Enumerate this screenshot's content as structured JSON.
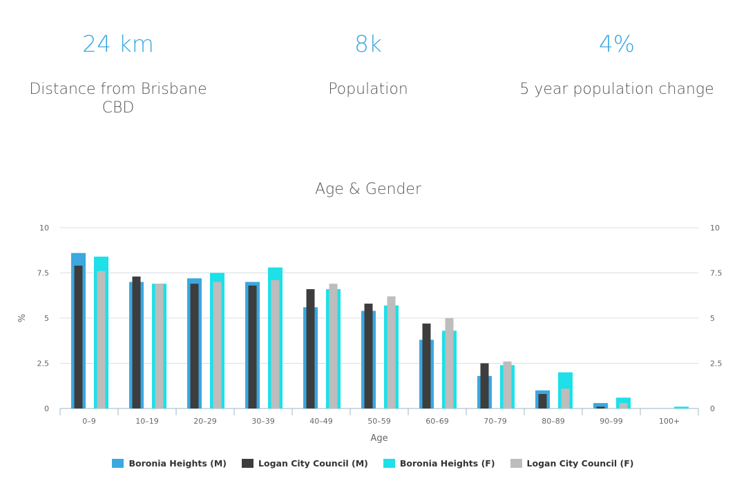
{
  "stats": [
    {
      "value": "24 km",
      "label": "Distance from Brisbane CBD"
    },
    {
      "value": "8k",
      "label": "Population"
    },
    {
      "value": "4%",
      "label": "5 year population change"
    }
  ],
  "chart_data": {
    "type": "bar",
    "title": "Age & Gender",
    "xlabel": "Age",
    "ylabel": "%",
    "ylim": [
      0,
      10
    ],
    "yticks": [
      "0",
      "2.5",
      "5",
      "7.5",
      "10"
    ],
    "grid": true,
    "legend_position": "bottom",
    "categories": [
      "0–9",
      "10–19",
      "20–29",
      "30–39",
      "40–49",
      "50–59",
      "60–69",
      "70–79",
      "80–89",
      "90–99",
      "100+"
    ],
    "series": [
      {
        "name": "Boronia Heights (M)",
        "color": "#3ba8df",
        "values": [
          8.6,
          7.0,
          7.2,
          7.0,
          5.6,
          5.4,
          3.8,
          1.8,
          1.0,
          0.3,
          0
        ]
      },
      {
        "name": "Logan City Council (M)",
        "color": "#3d3d3d",
        "values": [
          7.9,
          7.3,
          6.9,
          6.8,
          6.6,
          5.8,
          4.7,
          2.5,
          0.8,
          0.1,
          0
        ]
      },
      {
        "name": "Boronia Heights (F)",
        "color": "#1de0e8",
        "values": [
          8.4,
          6.9,
          7.5,
          7.8,
          6.6,
          5.7,
          4.3,
          2.4,
          2.0,
          0.6,
          0.1
        ]
      },
      {
        "name": "Logan City Council (F)",
        "color": "#bdbdbd",
        "values": [
          7.6,
          6.9,
          7.0,
          7.1,
          6.9,
          6.2,
          5.0,
          2.6,
          1.1,
          0.3,
          0
        ]
      }
    ]
  }
}
